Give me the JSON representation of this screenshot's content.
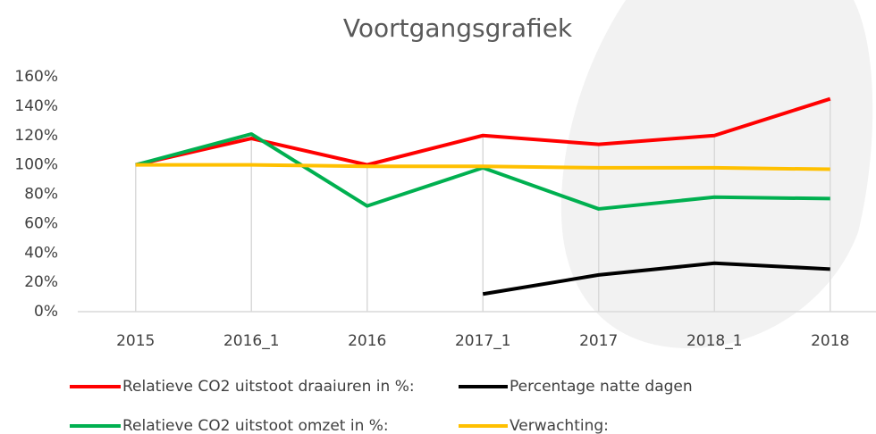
{
  "chart_data": {
    "type": "line",
    "title": "Voortgangsgrafiek",
    "categories": [
      "2015",
      "2016_1",
      "2016",
      "2017_1",
      "2017",
      "2018_1",
      "2018"
    ],
    "series": [
      {
        "name": "Relatieve CO2 uitstoot draaiuren in %:",
        "color": "#ff0000",
        "values": [
          100,
          118,
          100,
          120,
          114,
          120,
          145
        ]
      },
      {
        "name": "Percentage natte dagen",
        "color": "#000000",
        "values": [
          null,
          null,
          null,
          12,
          25,
          33,
          29
        ]
      },
      {
        "name": "Relatieve CO2 uitstoot omzet in %:",
        "color": "#00b050",
        "values": [
          100,
          121,
          72,
          98,
          70,
          78,
          77
        ]
      },
      {
        "name": "Verwachting:",
        "color": "#ffc000",
        "values": [
          100,
          100,
          99,
          99,
          98,
          98,
          97
        ]
      }
    ],
    "ylim": [
      0,
      160
    ],
    "yticks": [
      {
        "value": 0,
        "label": "0%"
      },
      {
        "value": 20,
        "label": "20%"
      },
      {
        "value": 40,
        "label": "40%"
      },
      {
        "value": 60,
        "label": "60%"
      },
      {
        "value": 80,
        "label": "80%"
      },
      {
        "value": 100,
        "label": "100%"
      },
      {
        "value": 120,
        "label": "120%"
      },
      {
        "value": 140,
        "label": "140%"
      },
      {
        "value": 160,
        "label": "160%"
      }
    ],
    "droplines": true,
    "legend": "bottom"
  }
}
